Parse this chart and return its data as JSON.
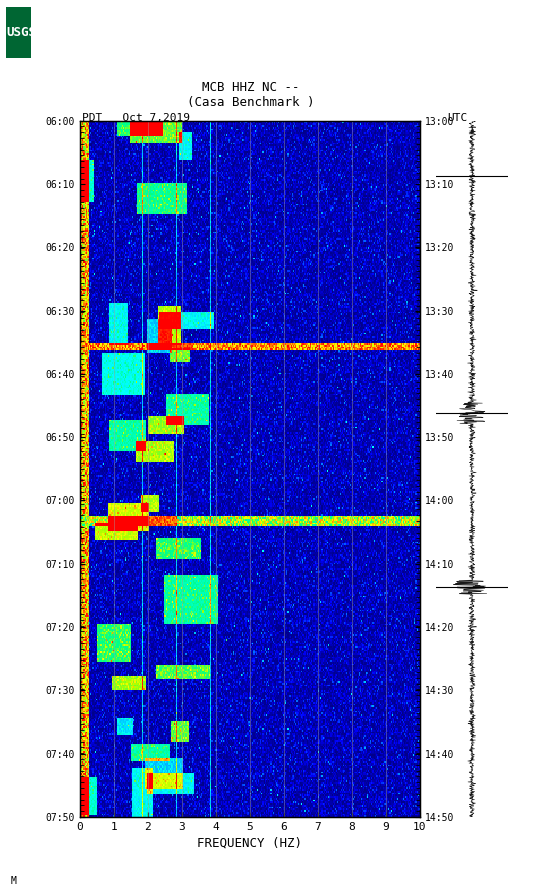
{
  "title_line1": "MCB HHZ NC --",
  "title_line2": "(Casa Benchmark )",
  "left_label": "PDT   Oct 7,2019",
  "right_label": "UTC",
  "left_yticks": [
    "06:00",
    "06:10",
    "06:20",
    "06:30",
    "06:40",
    "06:50",
    "07:00",
    "07:10",
    "07:20",
    "07:30",
    "07:40",
    "07:50"
  ],
  "right_yticks": [
    "13:00",
    "13:10",
    "13:20",
    "13:30",
    "13:40",
    "13:50",
    "14:00",
    "14:10",
    "14:20",
    "14:30",
    "14:40",
    "14:50"
  ],
  "xlabel": "FREQUENCY (HZ)",
  "xticks": [
    0,
    1,
    2,
    3,
    4,
    5,
    6,
    7,
    8,
    9,
    10
  ],
  "xmin": 0,
  "xmax": 10,
  "bg_color": "#ffffff",
  "spectrogram_bg": "#00008B",
  "grid_color": "#b0b0b0",
  "watermark": "M"
}
